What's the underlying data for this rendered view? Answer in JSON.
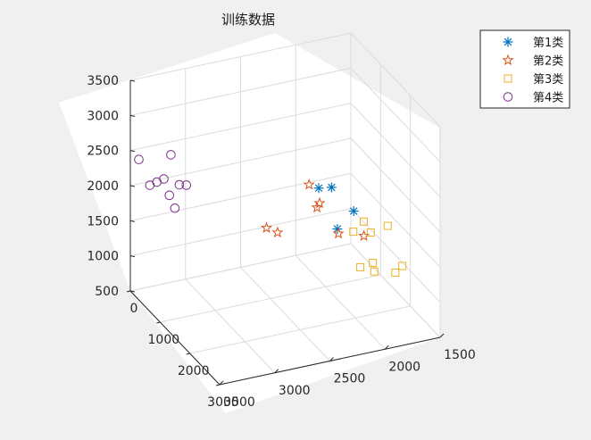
{
  "window": {
    "background": "#f0f0f0",
    "axes_background": "#ffffff",
    "axis_color": "#262626",
    "grid_color": "#dcdcdc"
  },
  "chart_data": {
    "type": "scatter",
    "dimensions": 3,
    "title": "训练数据",
    "xlabel": "",
    "ylabel": "",
    "zlabel": "",
    "xlim": [
      0,
      3000
    ],
    "ylim": [
      1500,
      3500
    ],
    "zlim": [
      500,
      3500
    ],
    "x_ticks": [
      "0",
      "1000",
      "2000",
      "3000"
    ],
    "y_ticks": [
      "1500",
      "2000",
      "2500",
      "3000",
      "3500"
    ],
    "z_ticks": [
      "500",
      "1000",
      "1500",
      "2000",
      "2500",
      "3000",
      "3500"
    ],
    "grid": true,
    "legend_position": "top-right",
    "series": [
      {
        "name": "第1类",
        "marker": "asterisk",
        "color": "#0072bd",
        "points": [
          {
            "x": 1700,
            "y": 2250,
            "z": 2300
          },
          {
            "x": 2500,
            "y": 2350,
            "z": 2700
          },
          {
            "x": 1400,
            "y": 2000,
            "z": 1500
          },
          {
            "x": 1950,
            "y": 2000,
            "z": 2000
          }
        ]
      },
      {
        "name": "第2类",
        "marker": "pentagram",
        "color": "#d95319",
        "points": [
          {
            "x": 2300,
            "y": 2500,
            "z": 2700
          },
          {
            "x": 800,
            "y": 2000,
            "z": 1600
          },
          {
            "x": 900,
            "y": 2050,
            "z": 1600
          },
          {
            "x": 1250,
            "y": 1950,
            "z": 1350
          },
          {
            "x": 1550,
            "y": 1800,
            "z": 1400
          },
          {
            "x": 500,
            "y": 2400,
            "z": 1250
          },
          {
            "x": 500,
            "y": 2300,
            "z": 1150
          }
        ]
      },
      {
        "name": "第3类",
        "marker": "square",
        "color": "#edb120",
        "points": [
          {
            "x": 2100,
            "y": 1950,
            "z": 1900
          },
          {
            "x": 2350,
            "y": 1800,
            "z": 1900
          },
          {
            "x": 2150,
            "y": 1900,
            "z": 1750
          },
          {
            "x": 1750,
            "y": 1950,
            "z": 1600
          },
          {
            "x": 1850,
            "y": 1800,
            "z": 1150
          },
          {
            "x": 2100,
            "y": 1600,
            "z": 1150
          },
          {
            "x": 1800,
            "y": 1900,
            "z": 1100
          },
          {
            "x": 1900,
            "y": 1800,
            "z": 1050
          },
          {
            "x": 2050,
            "y": 1650,
            "z": 1050
          }
        ]
      },
      {
        "name": "第4类",
        "marker": "circle",
        "color": "#7e2f8e",
        "points": [
          {
            "x": 250,
            "y": 3200,
            "z": 2450
          },
          {
            "x": 100,
            "y": 3450,
            "z": 2400
          },
          {
            "x": 200,
            "y": 3250,
            "z": 2100
          },
          {
            "x": 100,
            "y": 3350,
            "z": 2000
          },
          {
            "x": 150,
            "y": 3300,
            "z": 2050
          },
          {
            "x": 400,
            "y": 3100,
            "z": 2050
          },
          {
            "x": 350,
            "y": 3150,
            "z": 2050
          },
          {
            "x": 200,
            "y": 3200,
            "z": 1850
          },
          {
            "x": 200,
            "y": 3150,
            "z": 1650
          }
        ]
      }
    ]
  }
}
